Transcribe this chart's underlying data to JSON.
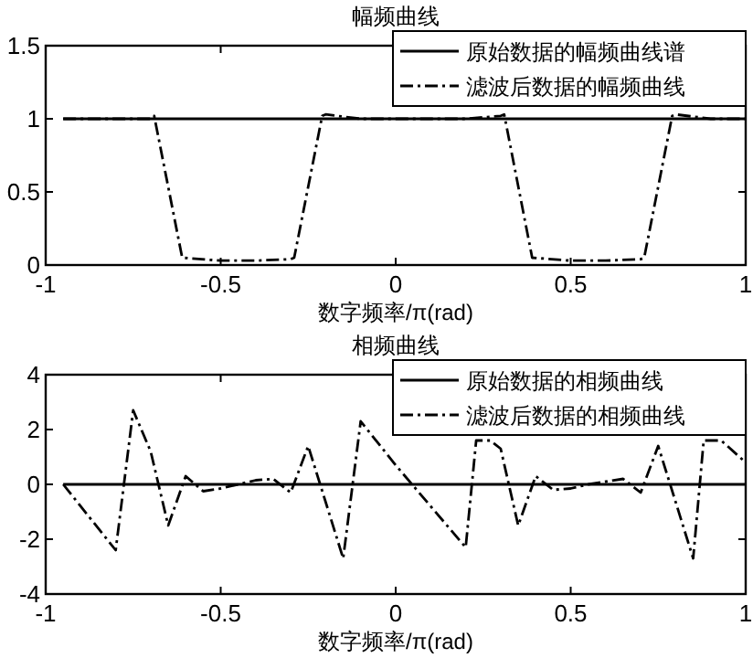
{
  "chart_data": [
    {
      "type": "line",
      "title": "幅频曲线",
      "xlabel": "数字频率/π(rad)",
      "xlim": [
        -1,
        1
      ],
      "xticks": [
        -1,
        -0.5,
        0,
        0.5,
        1
      ],
      "ylim": [
        0,
        1.5
      ],
      "yticks": [
        0,
        0.5,
        1,
        1.5
      ],
      "grid": false,
      "legend": "top right",
      "series": [
        {
          "name": "原始数据的幅频曲线谱",
          "color": "#000000",
          "line_style": "solid",
          "x": [
            -0.95,
            1
          ],
          "values": [
            1,
            1
          ]
        },
        {
          "name": "滤波后数据的幅频曲线",
          "color": "#000000",
          "line_style": "dashed",
          "x": [
            -0.95,
            -0.7,
            -0.69,
            -0.61,
            -0.5,
            -0.4,
            -0.3,
            -0.29,
            -0.21,
            -0.2,
            -0.1,
            0,
            0.1,
            0.2,
            0.3,
            0.31,
            0.39,
            0.5,
            0.6,
            0.7,
            0.71,
            0.79,
            0.8,
            0.9,
            1
          ],
          "values": [
            1,
            1,
            1.02,
            0.05,
            0.03,
            0.03,
            0.04,
            0.05,
            1.02,
            1.03,
            1,
            1,
            1,
            1,
            1.02,
            1.03,
            0.05,
            0.03,
            0.03,
            0.04,
            0.05,
            1.02,
            1.03,
            1,
            1
          ]
        }
      ]
    },
    {
      "type": "line",
      "title": "相频曲线",
      "xlabel": "数字频率/π(rad)",
      "xlim": [
        -1,
        1
      ],
      "xticks": [
        -1,
        -0.5,
        0,
        0.5,
        1
      ],
      "ylim": [
        -4,
        4
      ],
      "yticks": [
        -4,
        -2,
        0,
        2,
        4
      ],
      "grid": false,
      "legend": "top right",
      "series": [
        {
          "name": "原始数据的相频曲线",
          "color": "#000000",
          "line_style": "solid",
          "x": [
            -0.95,
            1
          ],
          "values": [
            0,
            0
          ]
        },
        {
          "name": "滤波后数据的相频曲线",
          "color": "#000000",
          "line_style": "dashed",
          "x": [
            -0.95,
            -0.8,
            -0.75,
            -0.7,
            -0.65,
            -0.6,
            -0.55,
            -0.5,
            -0.45,
            -0.4,
            -0.35,
            -0.3,
            -0.25,
            -0.15,
            -0.1,
            0,
            0.2,
            0.23,
            0.27,
            0.3,
            0.35,
            0.4,
            0.45,
            0.5,
            0.55,
            0.6,
            0.65,
            0.7,
            0.75,
            0.85,
            0.88,
            0.93,
            1
          ],
          "values": [
            0,
            -2.4,
            2.7,
            1.2,
            -1.5,
            0.3,
            -0.25,
            -0.15,
            0,
            0.15,
            0.2,
            -0.3,
            1.4,
            -2.7,
            2.3,
            0.7,
            -2.3,
            1.6,
            1.6,
            1.3,
            -1.5,
            0.3,
            -0.2,
            -0.15,
            0,
            0.1,
            0.2,
            -0.3,
            1.4,
            -2.7,
            1.6,
            1.6,
            0.8
          ]
        }
      ]
    }
  ]
}
